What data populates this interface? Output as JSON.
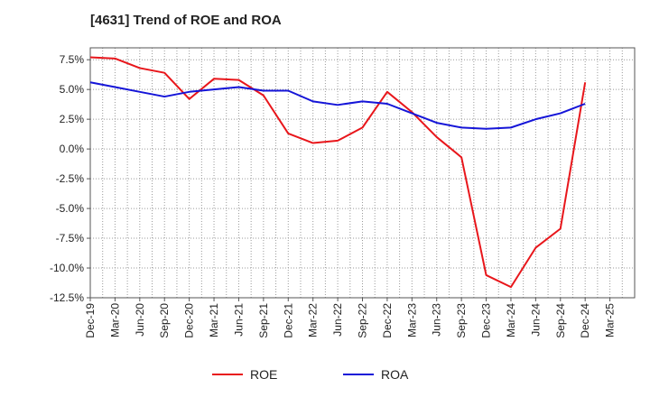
{
  "chart_data": {
    "type": "line",
    "title": "[4631]  Trend of ROE and ROA",
    "xlabel": "",
    "ylabel": "",
    "x": [
      "Dec-19",
      "Mar-20",
      "Jun-20",
      "Sep-20",
      "Dec-20",
      "Mar-21",
      "Jun-21",
      "Sep-21",
      "Dec-21",
      "Mar-22",
      "Jun-22",
      "Sep-22",
      "Dec-22",
      "Mar-23",
      "Jun-23",
      "Sep-23",
      "Dec-23",
      "Mar-24",
      "Jun-24",
      "Sep-24",
      "Dec-24",
      "Mar-25"
    ],
    "series": [
      {
        "name": "ROE",
        "color": "#e8161b",
        "values": [
          7.7,
          7.6,
          6.8,
          6.4,
          4.2,
          5.9,
          5.8,
          4.5,
          1.3,
          0.5,
          0.7,
          1.8,
          4.8,
          3.1,
          1.0,
          -0.7,
          -10.6,
          -11.6,
          -8.3,
          -6.7,
          5.6,
          null
        ]
      },
      {
        "name": "ROA",
        "color": "#1515d8",
        "values": [
          5.6,
          5.2,
          4.8,
          4.4,
          4.8,
          5.0,
          5.2,
          4.9,
          4.9,
          4.0,
          3.7,
          4.0,
          3.8,
          3.0,
          2.2,
          1.8,
          1.7,
          1.8,
          2.5,
          3.0,
          3.8,
          null
        ]
      }
    ],
    "yticks": [
      7.5,
      5.0,
      2.5,
      0.0,
      -2.5,
      -5.0,
      -7.5,
      -10.0,
      -12.5
    ],
    "ytick_labels": [
      "7.5%",
      "5.0%",
      "2.5%",
      "0.0%",
      "-2.5%",
      "-5.0%",
      "-7.5%",
      "-10.0%",
      "-12.5%"
    ],
    "ylim": [
      -12.5,
      8.5
    ],
    "grid": true,
    "legend_position": "bottom-center"
  }
}
